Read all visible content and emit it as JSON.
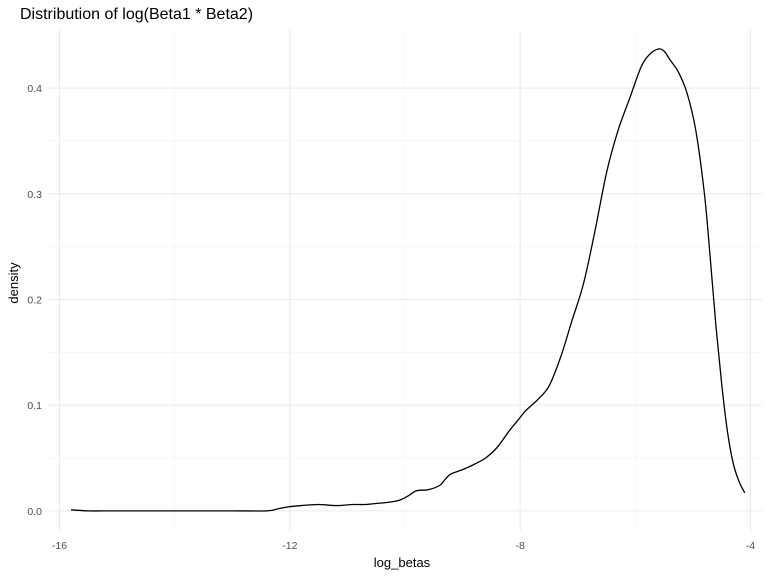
{
  "chart_data": {
    "type": "line",
    "title": "Distribution of log(Beta1 * Beta2)",
    "xlabel": "log_betas",
    "ylabel": "density",
    "xlim": [
      -16.2,
      -3.8
    ],
    "ylim": [
      -0.02,
      0.455
    ],
    "x_ticks": [
      -16,
      -12,
      -8,
      -4
    ],
    "x_tick_labels": [
      "-16",
      "-12",
      "-8",
      "-4"
    ],
    "y_ticks": [
      0.0,
      0.1,
      0.2,
      0.3,
      0.4
    ],
    "y_tick_labels": [
      "0.0",
      "0.1",
      "0.2",
      "0.3",
      "0.4"
    ],
    "grid": true,
    "series": [
      {
        "x": [
          -15.8,
          -15.5,
          -15.0,
          -14.0,
          -13.0,
          -12.4,
          -12.2,
          -12.0,
          -11.8,
          -11.5,
          -11.2,
          -10.9,
          -10.7,
          -10.5,
          -10.3,
          -10.1,
          -9.95,
          -9.8,
          -9.6,
          -9.4,
          -9.3,
          -9.2,
          -9.0,
          -8.8,
          -8.6,
          -8.4,
          -8.2,
          -8.05,
          -7.9,
          -7.7,
          -7.5,
          -7.3,
          -7.1,
          -6.9,
          -6.7,
          -6.5,
          -6.3,
          -6.1,
          -5.9,
          -5.75,
          -5.6,
          -5.5,
          -5.4,
          -5.25,
          -5.1,
          -4.95,
          -4.8,
          -4.7,
          -4.6,
          -4.5,
          -4.4,
          -4.3,
          -4.2,
          -4.1
        ],
        "y": [
          0.001,
          0.0,
          0.0,
          0.0,
          0.0,
          0.0,
          0.002,
          0.004,
          0.005,
          0.006,
          0.005,
          0.006,
          0.006,
          0.007,
          0.008,
          0.01,
          0.014,
          0.019,
          0.02,
          0.024,
          0.03,
          0.035,
          0.039,
          0.044,
          0.05,
          0.06,
          0.075,
          0.085,
          0.095,
          0.105,
          0.118,
          0.145,
          0.18,
          0.215,
          0.265,
          0.32,
          0.36,
          0.39,
          0.42,
          0.432,
          0.437,
          0.435,
          0.427,
          0.415,
          0.395,
          0.36,
          0.3,
          0.24,
          0.175,
          0.12,
          0.075,
          0.045,
          0.028,
          0.017
        ]
      }
    ]
  }
}
